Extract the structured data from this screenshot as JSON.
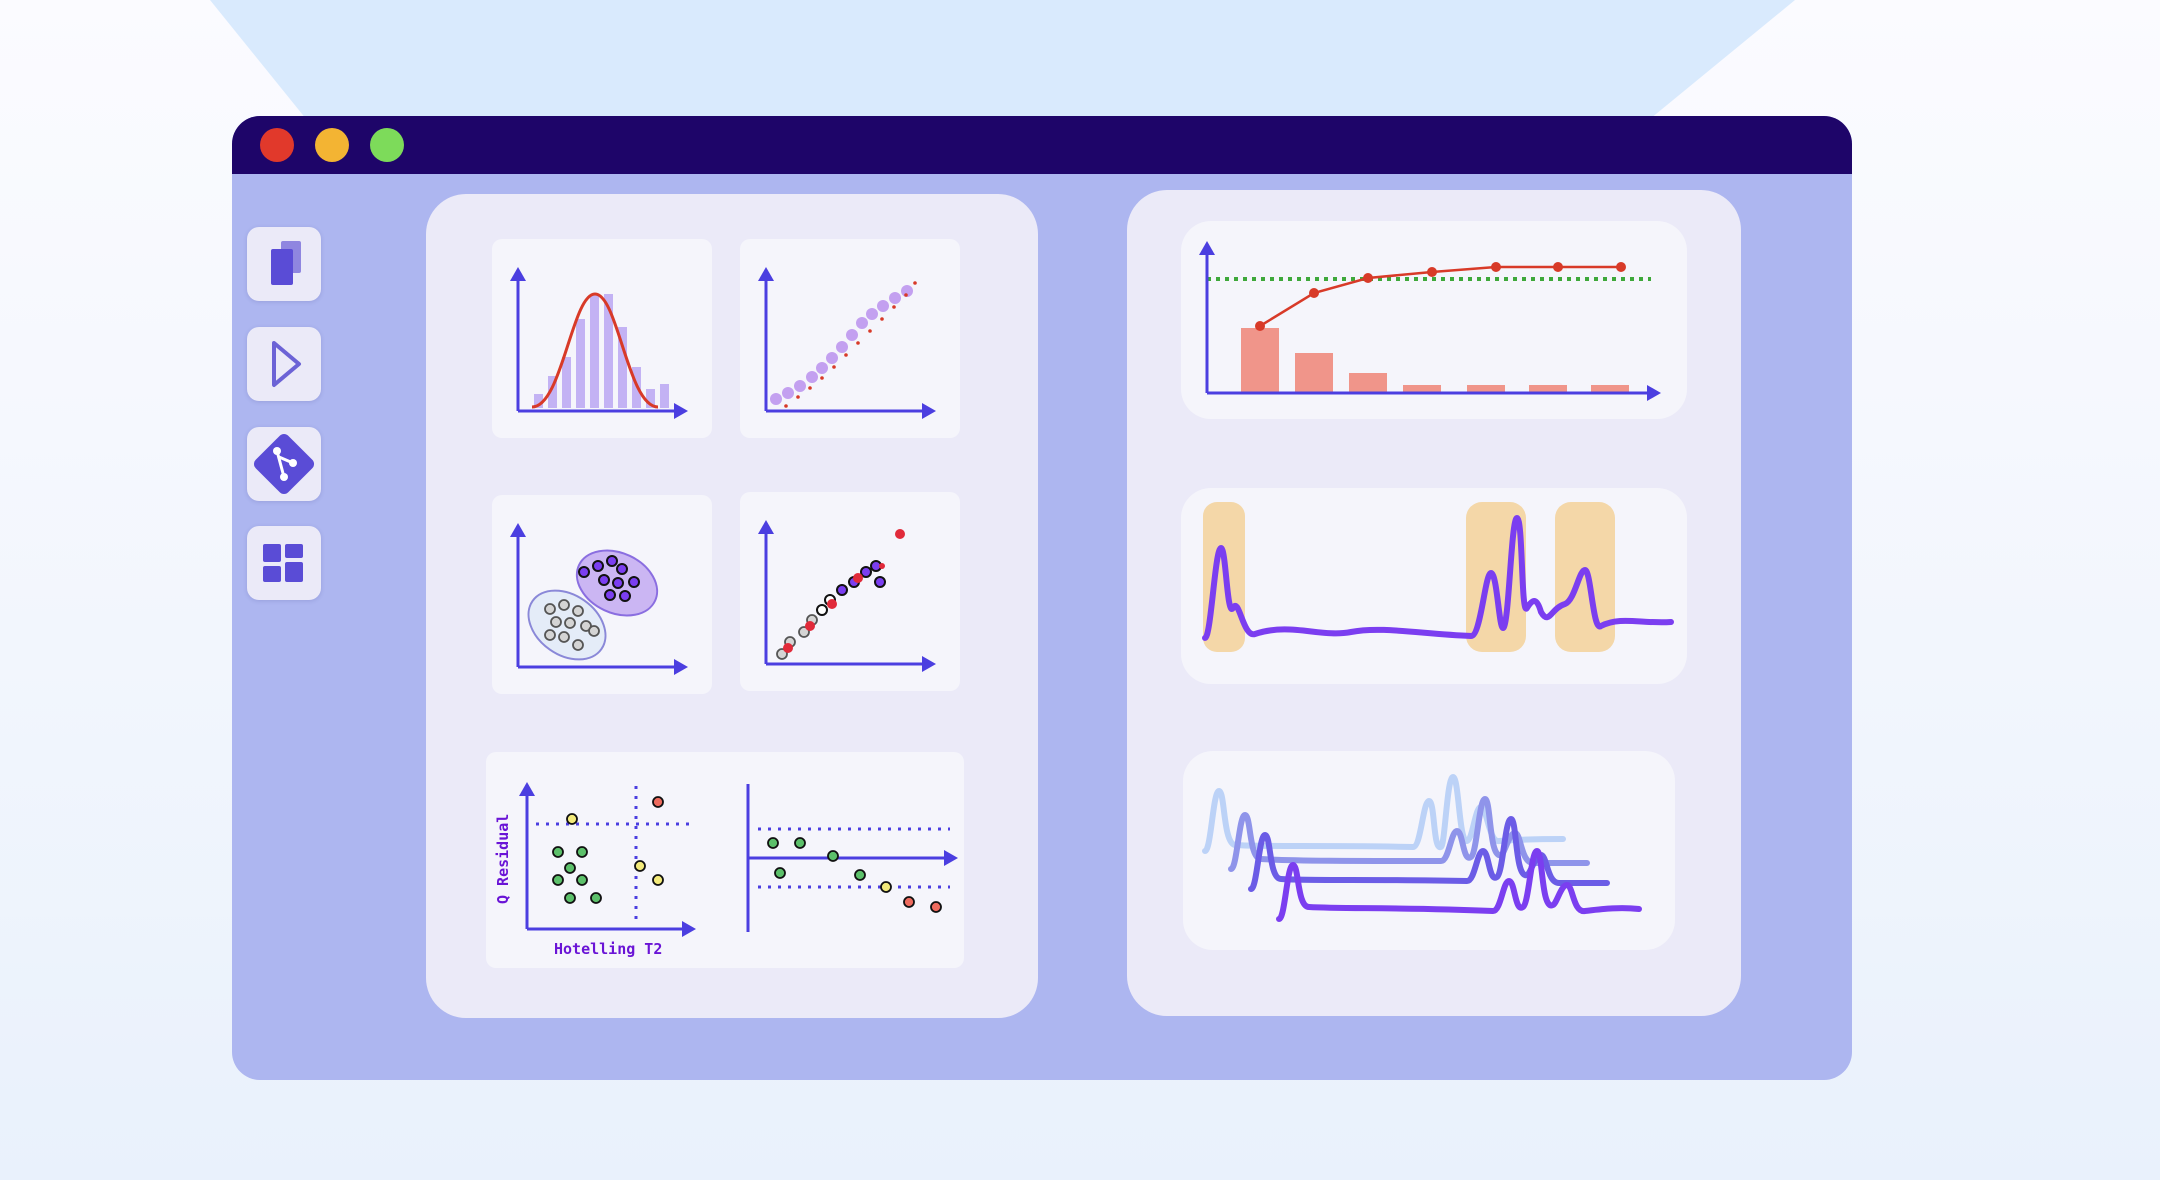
{
  "window": {
    "traffic_lights": {
      "close": "#e1392b",
      "minimize": "#f3b433",
      "maximize": "#7ddb5a"
    },
    "titlebar_color": "#1e0569",
    "background_color": "#adb6f0"
  },
  "sidebar": {
    "items": [
      {
        "icon": "files-icon",
        "tooltip": ""
      },
      {
        "icon": "play-icon",
        "tooltip": ""
      },
      {
        "icon": "git-icon",
        "tooltip": ""
      },
      {
        "icon": "dashboard-icon",
        "tooltip": ""
      }
    ]
  },
  "colors": {
    "accent": "#4b3ee0",
    "red": "#d83a28",
    "green": "#3ea83a",
    "purple": "#7b3ef0",
    "peak_highlight": "#f4d7a8"
  },
  "left_panel": {
    "mspc_chart": {
      "xlabel": "Hotelling T2",
      "ylabel": "Q Residual"
    }
  }
}
